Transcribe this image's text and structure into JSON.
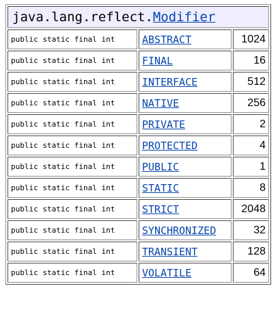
{
  "header": {
    "package": "java.lang.reflect.",
    "class_link": "Modifier"
  },
  "rows": [
    {
      "modifiers": "public static final int",
      "name": "ABSTRACT",
      "value": "1024"
    },
    {
      "modifiers": "public static final int",
      "name": "FINAL",
      "value": "16"
    },
    {
      "modifiers": "public static final int",
      "name": "INTERFACE",
      "value": "512"
    },
    {
      "modifiers": "public static final int",
      "name": "NATIVE",
      "value": "256"
    },
    {
      "modifiers": "public static final int",
      "name": "PRIVATE",
      "value": "2"
    },
    {
      "modifiers": "public static final int",
      "name": "PROTECTED",
      "value": "4"
    },
    {
      "modifiers": "public static final int",
      "name": "PUBLIC",
      "value": "1"
    },
    {
      "modifiers": "public static final int",
      "name": "STATIC",
      "value": "8"
    },
    {
      "modifiers": "public static final int",
      "name": "STRICT",
      "value": "2048"
    },
    {
      "modifiers": "public static final int",
      "name": "SYNCHRONIZED",
      "value": "32"
    },
    {
      "modifiers": "public static final int",
      "name": "TRANSIENT",
      "value": "128"
    },
    {
      "modifiers": "public static final int",
      "name": "VOLATILE",
      "value": "64"
    }
  ]
}
